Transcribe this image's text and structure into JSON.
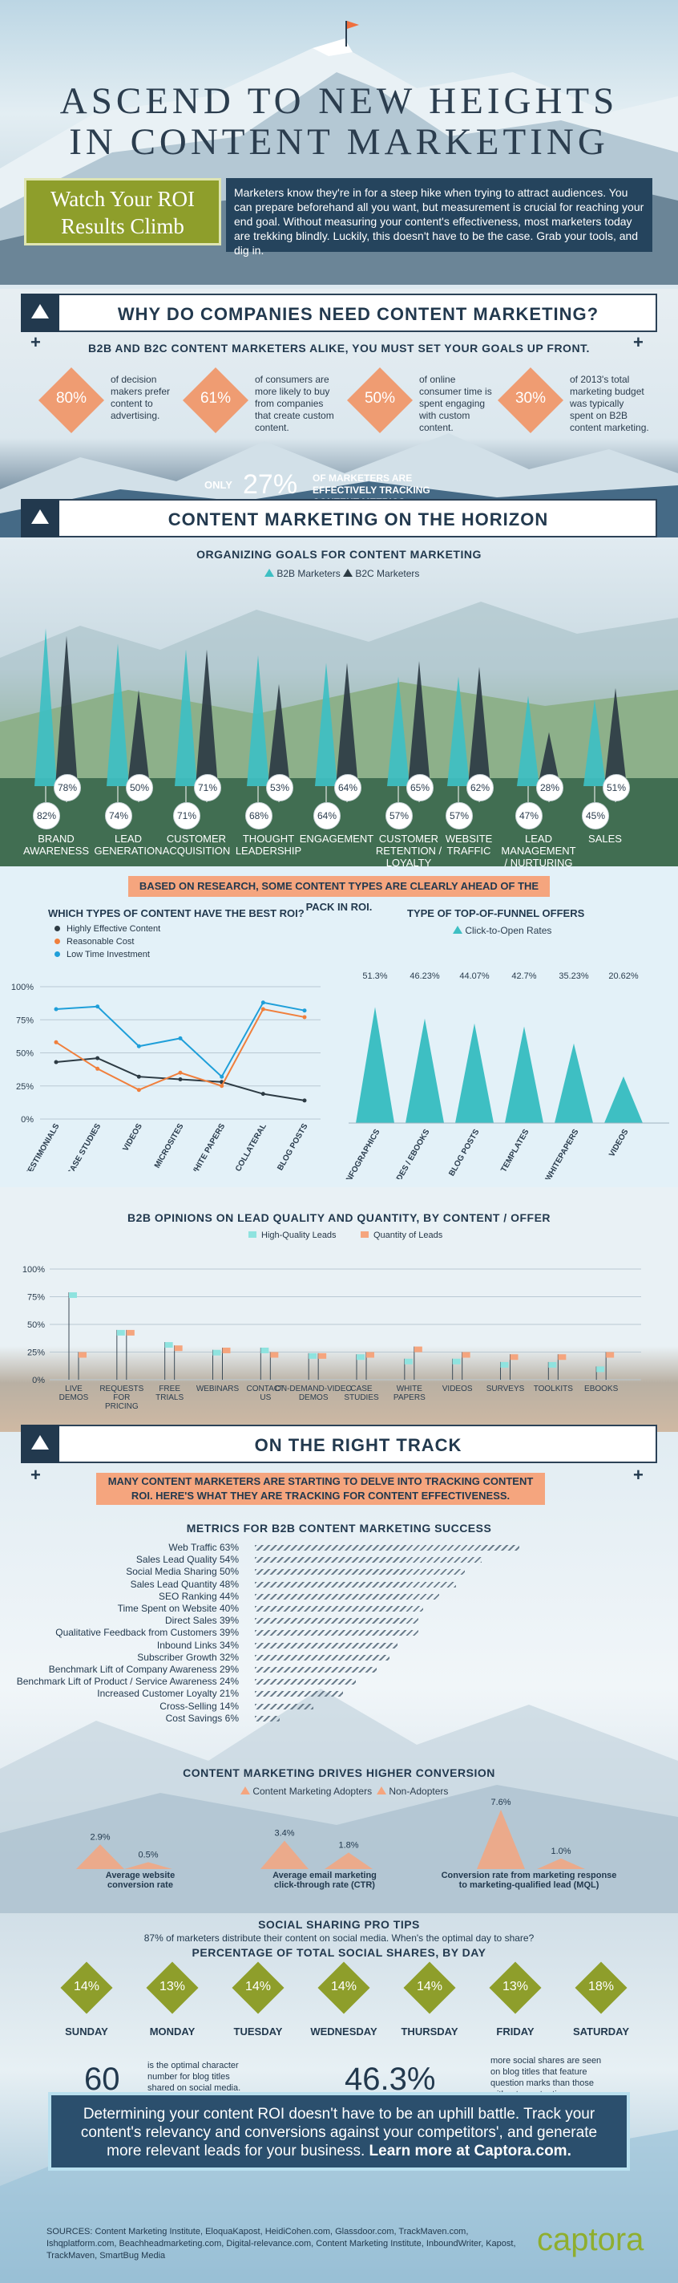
{
  "hero": {
    "title_line1": "ASCEND TO NEW HEIGHTS",
    "title_line2": "IN CONTENT MARKETING",
    "roi_line1": "Watch Your ROI",
    "roi_line2": "Results Climb",
    "intro": "Marketers know they're in for a steep hike when trying to attract audiences. You can prepare beforehand all you want, but measurement is crucial for reaching your end goal. Without measuring your content's effectiveness, most marketers today are trekking blindly. Luckily, this doesn't have to be the case. Grab your tools, and dig in."
  },
  "section1": {
    "title": "WHY DO COMPANIES NEED CONTENT MARKETING?",
    "subhead": "B2B AND B2C CONTENT MARKETERS ALIKE, YOU MUST SET YOUR GOALS UP FRONT.",
    "stats": [
      {
        "pct": "80%",
        "text": "of decision makers prefer content to advertising."
      },
      {
        "pct": "61%",
        "text": "of consumers are more likely to buy from companies that create custom content."
      },
      {
        "pct": "50%",
        "text": "of online consumer time is spent engaging with custom content."
      },
      {
        "pct": "30%",
        "text": "of 2013's total marketing budget was typically spent on B2B content marketing."
      }
    ],
    "only_pre": "ONLY",
    "only_value": "27%",
    "only_post": "OF MARKETERS ARE EFFECTIVELY TRACKING CONTENT METRICS."
  },
  "section2": {
    "title": "CONTENT MARKETING ON THE HORIZON",
    "subhead": "ORGANIZING GOALS FOR CONTENT MARKETING",
    "legend_b2b": "B2B Marketers",
    "legend_b2c": "B2C Marketers",
    "colors": {
      "b2b": "#3ebfc3",
      "b2c": "#2d3b44"
    },
    "goals": [
      {
        "label": "BRAND AWARENESS",
        "b2b": "82%",
        "b2c": "78%"
      },
      {
        "label": "LEAD GENERATION",
        "b2b": "74%",
        "b2c": "50%"
      },
      {
        "label": "CUSTOMER ACQUISITION",
        "b2b": "71%",
        "b2c": "71%"
      },
      {
        "label": "THOUGHT LEADERSHIP",
        "b2b": "68%",
        "b2c": "53%"
      },
      {
        "label": "ENGAGEMENT",
        "b2b": "64%",
        "b2c": "64%"
      },
      {
        "label": "CUSTOMER RETENTION / LOYALTY",
        "b2b": "57%",
        "b2c": "65%"
      },
      {
        "label": "WEBSITE TRAFFIC",
        "b2b": "57%",
        "b2c": "62%"
      },
      {
        "label": "LEAD MANAGEMENT / NURTURING",
        "b2b": "47%",
        "b2c": "28%"
      },
      {
        "label": "SALES",
        "b2b": "45%",
        "b2c": "51%"
      }
    ]
  },
  "section3": {
    "pill": "BASED ON RESEARCH, SOME CONTENT TYPES ARE CLEARLY AHEAD OF THE PACK IN ROI."
  },
  "section4": {
    "title": "B2B OPINIONS ON LEAD QUALITY AND QUANTITY, BY CONTENT / OFFER"
  },
  "section5": {
    "title": "ON THE RIGHT TRACK",
    "pill": "MANY CONTENT MARKETERS ARE STARTING TO DELVE INTO TRACKING CONTENT ROI. HERE'S WHAT THEY ARE TRACKING FOR CONTENT EFFECTIVENESS.",
    "metrics_title": "METRICS FOR B2B CONTENT MARKETING SUCCESS",
    "conv_title": "CONTENT MARKETING DRIVES HIGHER CONVERSION",
    "conv_legend_a": "Content Marketing Adopters",
    "conv_legend_b": "Non-Adopters",
    "conv": [
      {
        "label": "Average website conversion rate",
        "a": "2.9%",
        "b": "0.5%"
      },
      {
        "label": "Average email marketing click-through rate (CTR)",
        "a": "3.4%",
        "b": "1.8%"
      },
      {
        "label": "Conversion rate from marketing response to marketing-qualified lead (MQL)",
        "a": "7.6%",
        "b": "1.0%"
      }
    ],
    "social_title": "SOCIAL SHARING PRO TIPS",
    "social_note": "87% of marketers distribute their content on social media. When's the optimal day to share?",
    "social_sub": "PERCENTAGE OF TOTAL SOCIAL SHARES, BY DAY",
    "days": [
      {
        "day": "SUNDAY",
        "v": "14%"
      },
      {
        "day": "MONDAY",
        "v": "13%"
      },
      {
        "day": "TUESDAY",
        "v": "14%"
      },
      {
        "day": "WEDNESDAY",
        "v": "14%"
      },
      {
        "day": "THURSDAY",
        "v": "14%"
      },
      {
        "day": "FRIDAY",
        "v": "13%"
      },
      {
        "day": "SATURDAY",
        "v": "18%"
      }
    ],
    "big1": "60",
    "big1_text": "is the optimal character number for blog titles shared on social media.",
    "big2": "46.3%",
    "big2_text": "more social shares are seen on blog titles that feature question marks than those without punctuation.",
    "closing_1": "Determining your content ROI doesn't have to be an uphill battle. Track your content's relevancy and conversions against your competitors', and generate more relevant leads for your business.",
    "closing_2": "Learn more at Captora.com.",
    "sources": "SOURCES: Content Marketing Institute, EloquaKapost, HeidiCohen.com, Glassdoor.com, TrackMaven.com, Ishqplatform.com, Beachheadmarketing.com, Digital-relevance.com, Content Marketing Institute, InboundWriter, Kapost, TrackMaven, SmartBug Media",
    "logo": "captora"
  },
  "chart_data": [
    {
      "type": "line",
      "title": "WHICH TYPES OF CONTENT HAVE THE BEST ROI?",
      "categories": [
        "CUSTOMER TESTIMONIALS",
        "CASE STUDIES",
        "VIDEOS",
        "MICROSITES",
        "WHITE PAPERS",
        "PRODUCT COLLATERAL",
        "BLOG POSTS"
      ],
      "series": [
        {
          "name": "Highly Effective Content",
          "color": "#2d3b44",
          "values": [
            43,
            46,
            32,
            30,
            28,
            19,
            14
          ]
        },
        {
          "name": "Reasonable Cost",
          "color": "#f07f3c",
          "values": [
            58,
            38,
            22,
            35,
            25,
            83,
            77
          ]
        },
        {
          "name": "Low Time Investment",
          "color": "#1f9fd9",
          "values": [
            83,
            85,
            55,
            61,
            32,
            88,
            82
          ]
        }
      ],
      "ylim": [
        0,
        100
      ],
      "yticks": [
        "100%",
        "75%",
        "50%",
        "25%",
        "0%"
      ]
    },
    {
      "type": "bar",
      "title": "TYPE OF TOP-OF-FUNNEL OFFERS",
      "legend": "Click-to-Open Rates",
      "color": "#3ebfc3",
      "categories": [
        "INFOGRAPHICS",
        "GUIDES / EBOOKS",
        "BLOG POSTS",
        "TEMPLATES",
        "STUDIES / WHITEPAPERS",
        "VIDEOS"
      ],
      "values": [
        51.3,
        46.23,
        44.07,
        42.7,
        35.23,
        20.62
      ],
      "labels": [
        "51.3%",
        "46.23%",
        "44.07%",
        "42.7%",
        "35.23%",
        "20.62%"
      ]
    },
    {
      "type": "bar",
      "title": "B2B OPINIONS ON LEAD QUALITY AND QUANTITY, BY CONTENT / OFFER",
      "categories": [
        "LIVE DEMOS",
        "REQUESTS FOR PRICING",
        "FREE TRIALS",
        "WEBINARS",
        "CONTACT US",
        "ON-DEMAND-VIDEO DEMOS",
        "CASE STUDIES",
        "WHITE PAPERS",
        "VIDEOS",
        "SURVEYS",
        "TOOLKITS",
        "EBOOKS"
      ],
      "series": [
        {
          "name": "High-Quality Leads",
          "color": "#8fe3df",
          "values": [
            79,
            45,
            34,
            27,
            29,
            24,
            23,
            19,
            19,
            16,
            16,
            12
          ]
        },
        {
          "name": "Quantity of Leads",
          "color": "#f5a57e",
          "values": [
            25,
            45,
            31,
            29,
            25,
            24,
            25,
            30,
            25,
            23,
            23,
            25
          ]
        }
      ],
      "ylim": [
        0,
        100
      ],
      "yticks": [
        "100%",
        "75%",
        "50%",
        "25%",
        "0%"
      ]
    },
    {
      "type": "bar",
      "title": "METRICS FOR B2B CONTENT MARKETING SUCCESS",
      "categories": [
        "Web Traffic",
        "Sales Lead Quality",
        "Social Media Sharing",
        "Sales Lead Quantity",
        "SEO Ranking",
        "Time Spent on Website",
        "Direct Sales",
        "Qualitative Feedback from Customers",
        "Inbound Links",
        "Subscriber Growth",
        "Benchmark Lift of Company Awareness",
        "Benchmark Lift of Product / Service Awareness",
        "Increased Customer Loyalty",
        "Cross-Selling",
        "Cost Savings"
      ],
      "values": [
        63,
        54,
        50,
        48,
        44,
        40,
        39,
        39,
        34,
        32,
        29,
        24,
        21,
        14,
        6
      ],
      "labels": [
        "63%",
        "54%",
        "50%",
        "48%",
        "44%",
        "40%",
        "39%",
        "39%",
        "34%",
        "32%",
        "29%",
        "24%",
        "21%",
        "14%",
        "6%"
      ]
    }
  ]
}
